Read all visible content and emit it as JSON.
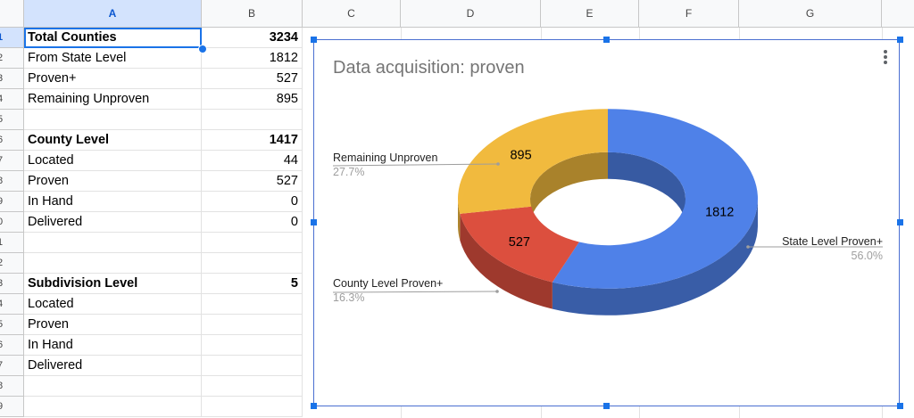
{
  "columns": [
    "A",
    "B",
    "C",
    "D",
    "E",
    "F",
    "G"
  ],
  "rows": [
    {
      "num": "1",
      "a": "Total Counties",
      "b": "3234",
      "bold": true
    },
    {
      "num": "2",
      "a": "From State Level",
      "b": "1812",
      "bold": false
    },
    {
      "num": "3",
      "a": "Proven+",
      "b": "527",
      "bold": false
    },
    {
      "num": "4",
      "a": "Remaining Unproven",
      "b": "895",
      "bold": false
    },
    {
      "num": "5",
      "a": "",
      "b": "",
      "bold": false
    },
    {
      "num": "6",
      "a": "County Level",
      "b": "1417",
      "bold": true
    },
    {
      "num": "7",
      "a": "Located",
      "b": "44",
      "bold": false
    },
    {
      "num": "8",
      "a": "Proven",
      "b": "527",
      "bold": false
    },
    {
      "num": "9",
      "a": "In Hand",
      "b": "0",
      "bold": false
    },
    {
      "num": "0",
      "a": "Delivered",
      "b": "0",
      "bold": false
    },
    {
      "num": "1",
      "a": "",
      "b": "",
      "bold": false
    },
    {
      "num": "2",
      "a": "",
      "b": "",
      "bold": false
    },
    {
      "num": "3",
      "a": "Subdivision Level",
      "b": "5",
      "bold": true
    },
    {
      "num": "4",
      "a": "Located",
      "b": "",
      "bold": false
    },
    {
      "num": "5",
      "a": "Proven",
      "b": "",
      "bold": false
    },
    {
      "num": "6",
      "a": "In Hand",
      "b": "",
      "bold": false
    },
    {
      "num": "7",
      "a": "Delivered",
      "b": "",
      "bold": false
    },
    {
      "num": "8",
      "a": "",
      "b": "",
      "bold": false
    },
    {
      "num": "9",
      "a": "",
      "b": "",
      "bold": false
    }
  ],
  "chart": {
    "title": "Data acquisition: proven",
    "menu_icon": "more-vert-icon"
  },
  "chart_data": {
    "type": "pie",
    "style": "3d-donut",
    "title": "Data acquisition: proven",
    "slices": [
      {
        "label": "State Level Proven+",
        "value": 1812,
        "percent": "56.0%",
        "color": "#4f81e8"
      },
      {
        "label": "County Level Proven+",
        "value": 527,
        "percent": "16.3%",
        "color": "#dc4f3e"
      },
      {
        "label": "Remaining Unproven",
        "value": 895,
        "percent": "27.7%",
        "color": "#f1ba3e"
      }
    ]
  }
}
